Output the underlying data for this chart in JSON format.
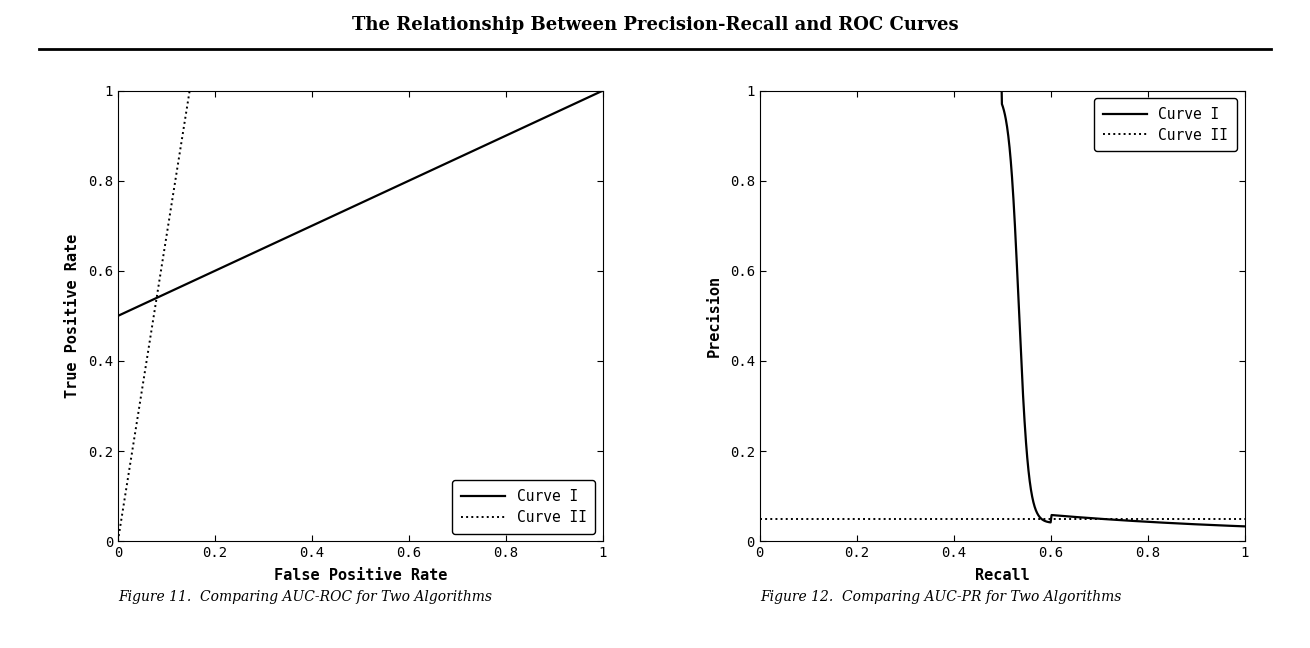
{
  "title": "The Relationship Between Precision-Recall and ROC Curves",
  "title_fontsize": 13,
  "fig_width": 13.1,
  "fig_height": 6.48,
  "background_color": "#ffffff",
  "roc": {
    "xlabel": "False Positive Rate",
    "ylabel": "True Positive Rate",
    "xlim": [
      0,
      1
    ],
    "ylim": [
      0,
      1
    ],
    "xticks": [
      0,
      0.2,
      0.4,
      0.6,
      0.8,
      1
    ],
    "yticks": [
      0,
      0.2,
      0.4,
      0.6,
      0.8,
      1
    ],
    "xtick_labels": [
      "0",
      "0.2",
      "0.4",
      "0.6",
      "0.8",
      "1"
    ],
    "ytick_labels": [
      "0",
      "0.2",
      "0.4",
      "0.6",
      "0.8",
      "1"
    ],
    "caption": "Figure 11.  Comparing AUC-ROC for Two Algorithms"
  },
  "pr": {
    "xlabel": "Recall",
    "ylabel": "Precision",
    "xlim": [
      0,
      1
    ],
    "ylim": [
      0,
      1
    ],
    "xticks": [
      0,
      0.2,
      0.4,
      0.6,
      0.8,
      1
    ],
    "yticks": [
      0,
      0.2,
      0.4,
      0.6,
      0.8,
      1
    ],
    "xtick_labels": [
      "0",
      "0.2",
      "0.4",
      "0.6",
      "0.8",
      "1"
    ],
    "ytick_labels": [
      "0",
      "0.2",
      "0.4",
      "0.6",
      "0.8",
      "1"
    ],
    "caption": "Figure 12.  Comparing AUC-PR for Two Algorithms"
  },
  "curve1_color": "#000000",
  "curve2_color": "#000000",
  "curve1_lw": 1.6,
  "curve2_lw": 1.4,
  "legend_curve1": "Curve I",
  "legend_curve2": "Curve II"
}
